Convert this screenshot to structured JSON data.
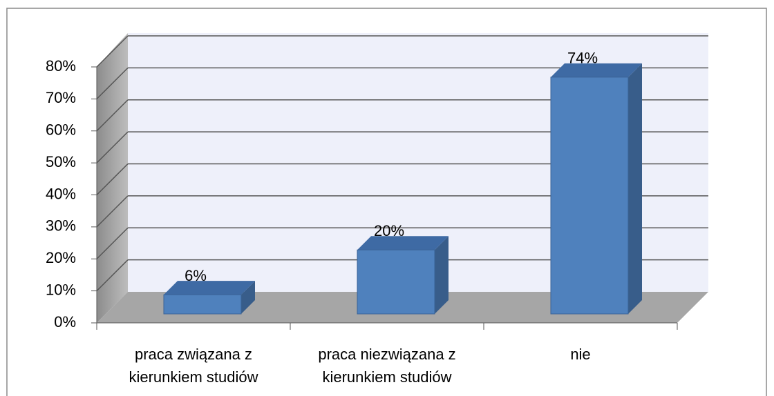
{
  "chart_data": {
    "type": "bar",
    "categories": [
      [
        "praca związana z",
        "kierunkiem studiów"
      ],
      [
        "praca niezwiązana z",
        "kierunkiem studiów"
      ],
      [
        "nie"
      ]
    ],
    "values": [
      6,
      20,
      74
    ],
    "value_labels": [
      "6%",
      "20%",
      "74%"
    ],
    "color": "#4f81bd",
    "ylim": [
      0,
      80
    ],
    "yticks": [
      {
        "value": 0,
        "label": "0%"
      },
      {
        "value": 10,
        "label": "10%"
      },
      {
        "value": 20,
        "label": "20%"
      },
      {
        "value": 30,
        "label": "30%"
      },
      {
        "value": 40,
        "label": "40%"
      },
      {
        "value": 50,
        "label": "50%"
      },
      {
        "value": 60,
        "label": "60%"
      },
      {
        "value": 70,
        "label": "70%"
      },
      {
        "value": 80,
        "label": "80%"
      }
    ],
    "grid": true
  }
}
